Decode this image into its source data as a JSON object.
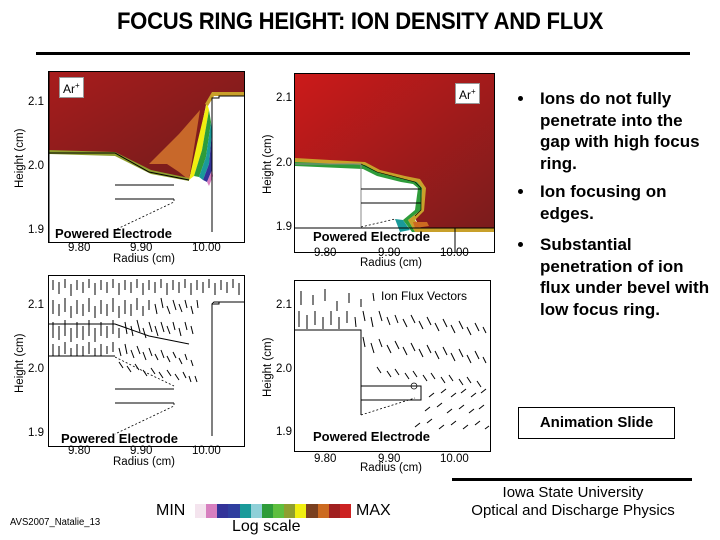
{
  "slide": {
    "title": "FOCUS RING HEIGHT: ION DENSITY AND FLUX",
    "footer_id": "AVS2007_Natalie_13",
    "institution_line1": "Iowa State University",
    "institution_line2": "Optical and Discharge Physics",
    "animation_label": "Animation Slide"
  },
  "bullets": [
    "Ions do not fully penetrate into the gap with high focus ring.",
    "Ion focusing on edges.",
    "Substantial penetration of ion flux under bevel with low focus ring."
  ],
  "colorbar": {
    "min_label": "MIN",
    "max_label": "MAX",
    "scale_label": "Log scale",
    "colors": [
      "#f4e4ee",
      "#d77fbf",
      "#333399",
      "#2f3f9f",
      "#1a9a9a",
      "#8fd0d8",
      "#2e9c3a",
      "#5fbf3f",
      "#8f9f2f",
      "#f0ee10",
      "#7a4020",
      "#cc6a20",
      "#a02020",
      "#cc2222"
    ]
  },
  "panels": [
    {
      "id": "density-high-ring",
      "species_label": "Ar+",
      "electrode_label": "Powered Electrode",
      "y_axis_label": "Height (cm)",
      "x_axis_label": "Radius (cm)",
      "y_ticks": [
        "2.1",
        "2.0",
        "1.9"
      ],
      "x_ticks": [
        "9.80",
        "9.90",
        "10.00"
      ]
    },
    {
      "id": "density-low-ring",
      "species_label": "Ar+",
      "electrode_label": "Powered Electrode",
      "y_axis_label": "Height (cm)",
      "x_axis_label": "Radius (cm)",
      "y_ticks": [
        "2.1",
        "2.0",
        "1.9"
      ],
      "x_ticks": [
        "9.80",
        "9.90",
        "10.00"
      ]
    },
    {
      "id": "flux-high-ring",
      "electrode_label": "Powered Electrode",
      "y_axis_label": "Height (cm)",
      "x_axis_label": "Radius (cm)",
      "y_ticks": [
        "2.1",
        "2.0",
        "1.9"
      ],
      "x_ticks": [
        "9.80",
        "9.90",
        "10.00"
      ]
    },
    {
      "id": "flux-low-ring",
      "vector_label": "Ion Flux Vectors",
      "electrode_label": "Powered Electrode",
      "y_axis_label": "Height (cm)",
      "x_axis_label": "Radius (cm)",
      "y_ticks": [
        "2.1",
        "2.0",
        "1.9"
      ],
      "x_ticks": [
        "9.80",
        "9.90",
        "10.00"
      ]
    }
  ]
}
